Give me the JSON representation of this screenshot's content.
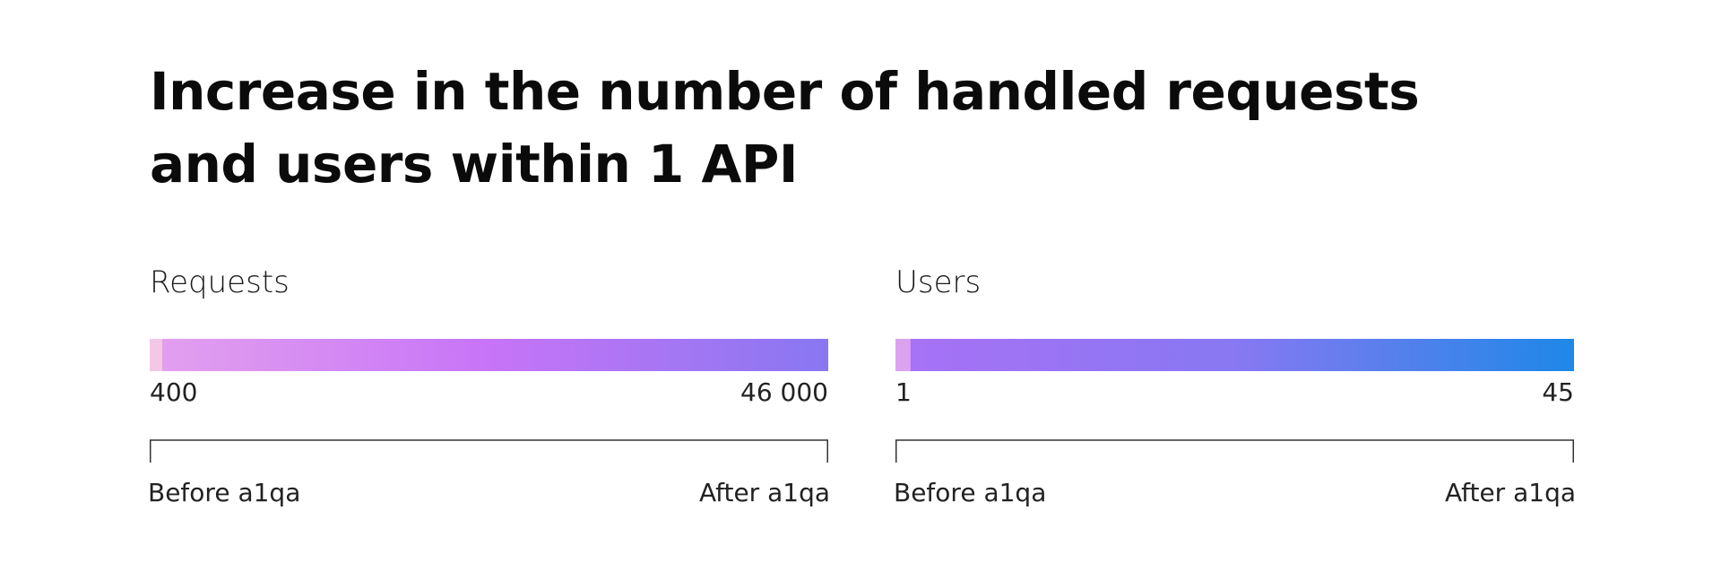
{
  "title": "Increase in the number of handled requests and users within 1 API",
  "chart_data": [
    {
      "type": "bar",
      "title": "Requests",
      "categories": [
        "Before a1qa",
        "After a1qa"
      ],
      "values": [
        400,
        46000
      ],
      "value_labels": [
        "400",
        "46 000"
      ],
      "axis_labels": {
        "start": "Before a1qa",
        "end": "After a1qa"
      },
      "colors": {
        "before": "#f4c7e6",
        "gradient": [
          "#e3a1ee",
          "#c774f7",
          "#8877f1"
        ]
      }
    },
    {
      "type": "bar",
      "title": "Users",
      "categories": [
        "Before a1qa",
        "After a1qa"
      ],
      "values": [
        1,
        45
      ],
      "value_labels": [
        "1",
        "45"
      ],
      "axis_labels": {
        "start": "Before a1qa",
        "end": "After a1qa"
      },
      "colors": {
        "before": "#dca2ef",
        "gradient": [
          "#a871f6",
          "#8878f1",
          "#1e88e8"
        ]
      }
    }
  ]
}
